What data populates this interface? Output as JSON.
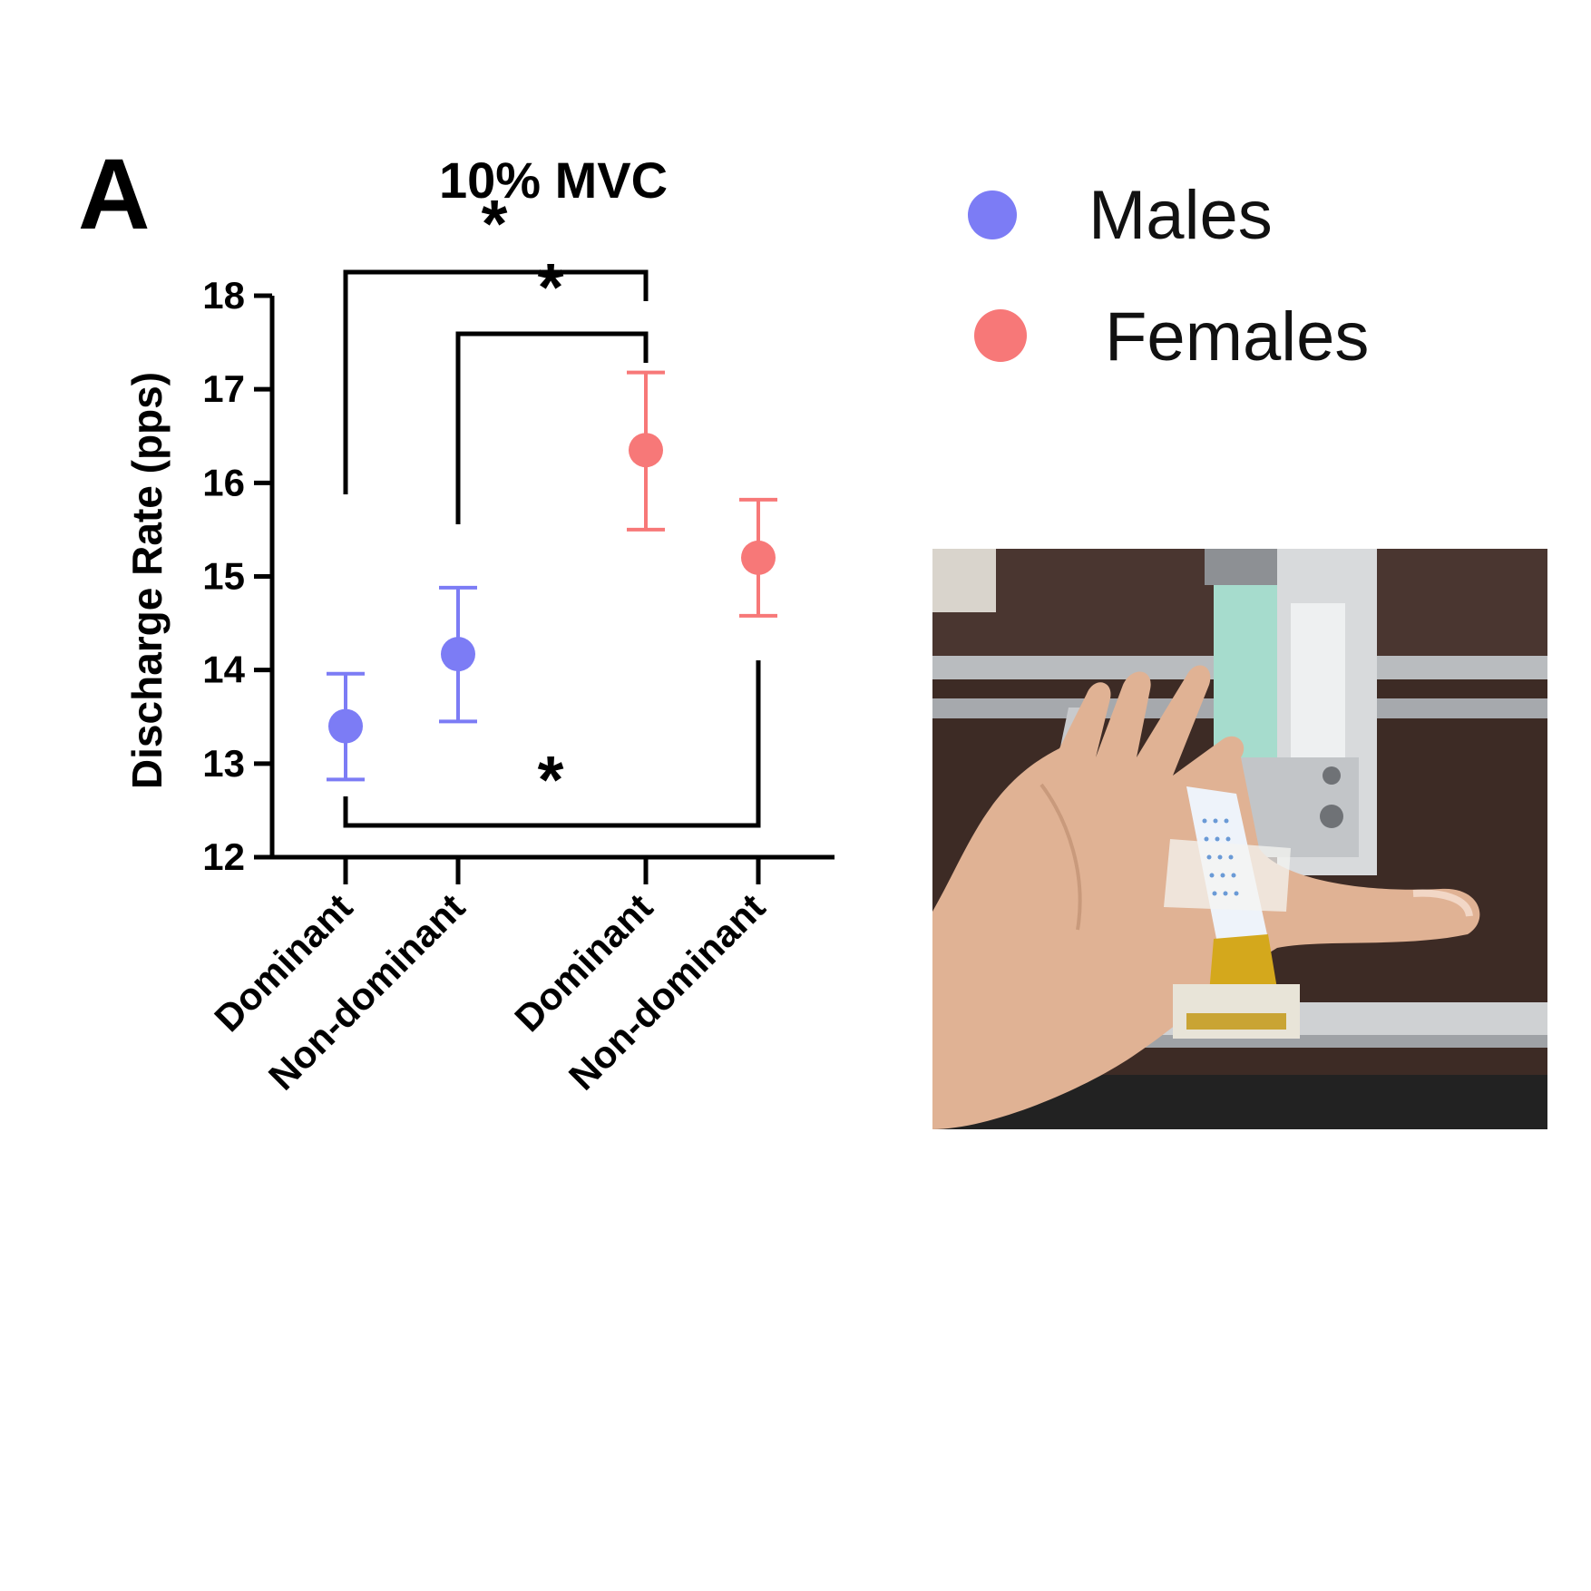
{
  "panel_label": "A",
  "colors": {
    "males": "#7c7cf5",
    "females": "#f77878",
    "axis": "#000000"
  },
  "legend": {
    "males_label": "Males",
    "females_label": "Females"
  },
  "photo": {
    "alt": ""
  },
  "chart_data": {
    "type": "scatter",
    "title": "10% MVC",
    "xlabel": "",
    "ylabel": "Discharge Rate (pps)",
    "ylim": [
      12,
      18
    ],
    "yticks": [
      12,
      13,
      14,
      15,
      16,
      17,
      18
    ],
    "categories": [
      "Dominant",
      "Non-dominant",
      "Dominant",
      "Non-dominant"
    ],
    "series": [
      {
        "name": "Males",
        "color": "#7c7cf5",
        "categories": [
          "Dominant",
          "Non-dominant"
        ],
        "values": [
          13.4,
          14.17
        ],
        "err_low": [
          12.83,
          13.45
        ],
        "err_high": [
          13.96,
          14.88
        ]
      },
      {
        "name": "Females",
        "color": "#f77878",
        "categories": [
          "Dominant",
          "Non-dominant"
        ],
        "values": [
          16.35,
          15.2
        ],
        "err_low": [
          15.5,
          14.58
        ],
        "err_high": [
          17.18,
          15.82
        ]
      }
    ],
    "significance": [
      {
        "from_category": 0,
        "to_category": 2,
        "label": "*",
        "position": "top"
      },
      {
        "from_category": 1,
        "to_category": 2,
        "label": "*",
        "position": "top"
      },
      {
        "from_category": 0,
        "to_category": 3,
        "label": "*",
        "position": "bottom"
      }
    ],
    "legend_position": "top-right",
    "grid": false
  }
}
